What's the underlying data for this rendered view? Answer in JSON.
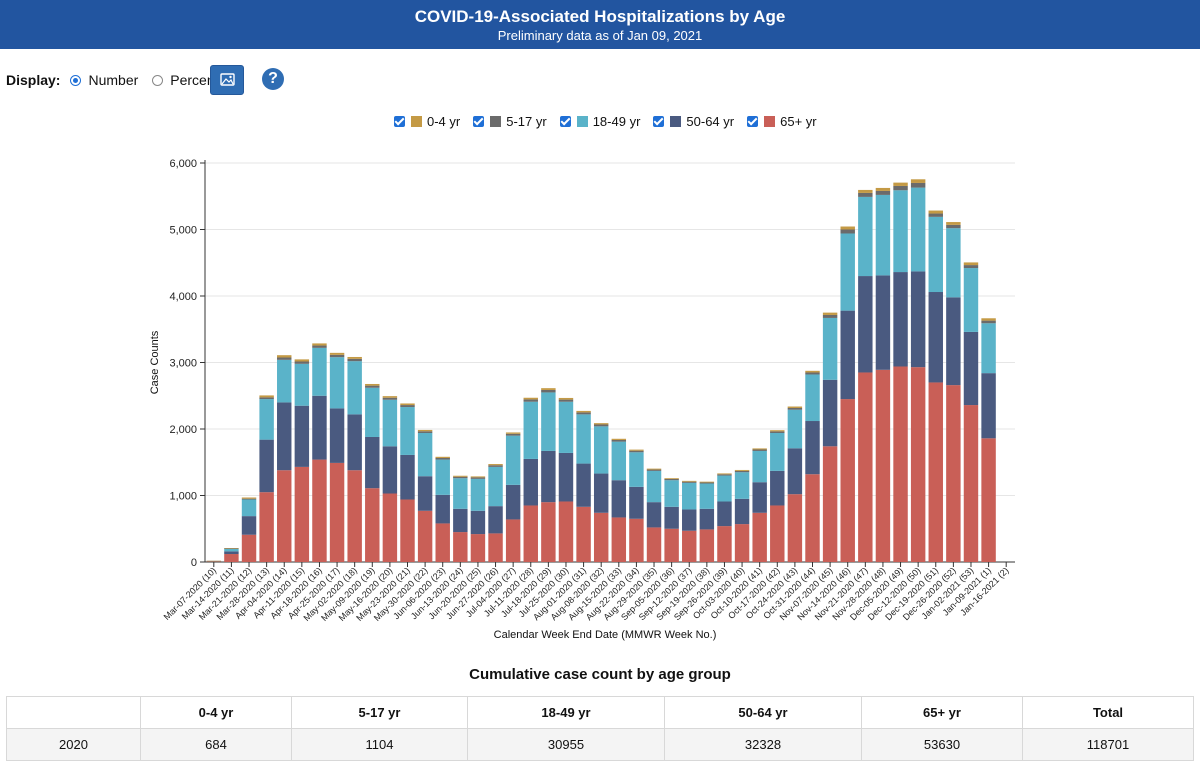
{
  "header": {
    "title": "COVID-19-Associated Hospitalizations by Age",
    "subtitle": "Preliminary data as of Jan 09, 2021"
  },
  "controls": {
    "display_label": "Display:",
    "options": [
      {
        "label": "Number",
        "selected": true
      },
      {
        "label": "Percent",
        "selected": false
      }
    ],
    "image_button_icon": "image-icon",
    "help_icon": "question-icon",
    "help_text": "?"
  },
  "colors": {
    "0-4 yr": "#c49a45",
    "5-17 yr": "#6b6b6b",
    "18-49 yr": "#5ab3c9",
    "50-64 yr": "#4a5a80",
    "65+ yr": "#c95f57",
    "header_bg": "#2255a0",
    "checkbox": "#1f6fd6"
  },
  "chart_data": {
    "type": "bar",
    "stacked": true,
    "xlabel": "Calendar Week End Date (MMWR Week No.)",
    "ylabel": "Case Counts",
    "ylim": [
      0,
      6000
    ],
    "yticks": [
      "0",
      "1,000",
      "2,000",
      "3,000",
      "4,000",
      "5,000",
      "6,000"
    ],
    "grid": true,
    "legend_placement": "top",
    "categories": [
      "Mar-07-2020 (10)",
      "Mar-14-2020 (11)",
      "Mar-21-2020 (12)",
      "Mar-28-2020 (13)",
      "Apr-04-2020 (14)",
      "Apr-11-2020 (15)",
      "Apr-18-2020 (16)",
      "Apr-25-2020 (17)",
      "May-02-2020 (18)",
      "May-09-2020 (19)",
      "May-16-2020 (20)",
      "May-23-2020 (21)",
      "May-30-2020 (22)",
      "Jun-06-2020 (23)",
      "Jun-13-2020 (24)",
      "Jun-20-2020 (25)",
      "Jun-27-2020 (26)",
      "Jul-04-2020 (27)",
      "Jul-11-2020 (28)",
      "Jul-18-2020 (29)",
      "Jul-25-2020 (30)",
      "Aug-01-2020 (31)",
      "Aug-08-2020 (32)",
      "Aug-15-2020 (33)",
      "Aug-22-2020 (34)",
      "Aug-29-2020 (35)",
      "Sep-05-2020 (36)",
      "Sep-12-2020 (37)",
      "Sep-19-2020 (38)",
      "Sep-26-2020 (39)",
      "Oct-03-2020 (40)",
      "Oct-10-2020 (41)",
      "Oct-17-2020 (42)",
      "Oct-24-2020 (43)",
      "Oct-31-2020 (44)",
      "Nov-07-2020 (45)",
      "Nov-14-2020 (46)",
      "Nov-21-2020 (47)",
      "Nov-28-2020 (48)",
      "Dec-05-2020 (49)",
      "Dec-12-2020 (50)",
      "Dec-19-2020 (51)",
      "Dec-26-2020 (52)",
      "Jan-02-2021 (53)",
      "Jan-09-2021 (1)",
      "Jan-16-2021 (2)"
    ],
    "series": [
      {
        "name": "65+ yr",
        "values": [
          8,
          120,
          410,
          1050,
          1380,
          1430,
          1540,
          1490,
          1380,
          1110,
          1030,
          940,
          770,
          580,
          450,
          420,
          430,
          640,
          850,
          900,
          910,
          830,
          740,
          670,
          650,
          520,
          500,
          470,
          490,
          540,
          570,
          740,
          850,
          1020,
          1320,
          1740,
          2450,
          2850,
          2890,
          2940,
          2930,
          2700,
          2660,
          2360,
          1860,
          0
        ]
      },
      {
        "name": "50-64 yr",
        "values": [
          4,
          40,
          280,
          790,
          1020,
          920,
          960,
          820,
          840,
          770,
          710,
          670,
          520,
          430,
          350,
          350,
          410,
          520,
          700,
          770,
          730,
          650,
          590,
          560,
          480,
          380,
          330,
          320,
          310,
          370,
          380,
          460,
          520,
          690,
          800,
          1000,
          1330,
          1450,
          1420,
          1420,
          1440,
          1360,
          1320,
          1100,
          980,
          0
        ]
      },
      {
        "name": "18-49 yr",
        "values": [
          4,
          40,
          250,
          610,
          640,
          630,
          720,
          770,
          800,
          740,
          700,
          720,
          650,
          530,
          460,
          480,
          590,
          740,
          860,
          880,
          770,
          740,
          710,
          580,
          520,
          470,
          400,
          400,
          380,
          390,
          400,
          470,
          570,
          580,
          700,
          930,
          1160,
          1190,
          1210,
          1230,
          1260,
          1130,
          1040,
          960,
          750,
          0
        ]
      },
      {
        "name": "5-17 yr",
        "values": [
          1,
          4,
          12,
          25,
          35,
          35,
          35,
          35,
          35,
          32,
          30,
          30,
          26,
          24,
          22,
          22,
          25,
          28,
          35,
          37,
          32,
          30,
          28,
          25,
          24,
          20,
          18,
          18,
          16,
          18,
          20,
          22,
          24,
          26,
          30,
          45,
          60,
          60,
          60,
          65,
          70,
          50,
          50,
          45,
          40,
          0
        ]
      },
      {
        "name": "0-4 yr",
        "values": [
          1,
          6,
          18,
          30,
          35,
          32,
          32,
          30,
          28,
          25,
          24,
          24,
          20,
          18,
          15,
          15,
          18,
          20,
          25,
          27,
          25,
          22,
          20,
          18,
          16,
          14,
          12,
          12,
          12,
          14,
          14,
          16,
          18,
          22,
          25,
          35,
          45,
          45,
          45,
          50,
          55,
          45,
          42,
          40,
          35,
          0
        ]
      }
    ]
  },
  "table": {
    "title": "Cumulative case count by age group",
    "headers": [
      "",
      "0-4 yr",
      "5-17 yr",
      "18-49 yr",
      "50-64 yr",
      "65+ yr",
      "Total"
    ],
    "rows": [
      [
        "2020",
        "684",
        "1104",
        "30955",
        "32328",
        "53630",
        "118701"
      ]
    ]
  }
}
